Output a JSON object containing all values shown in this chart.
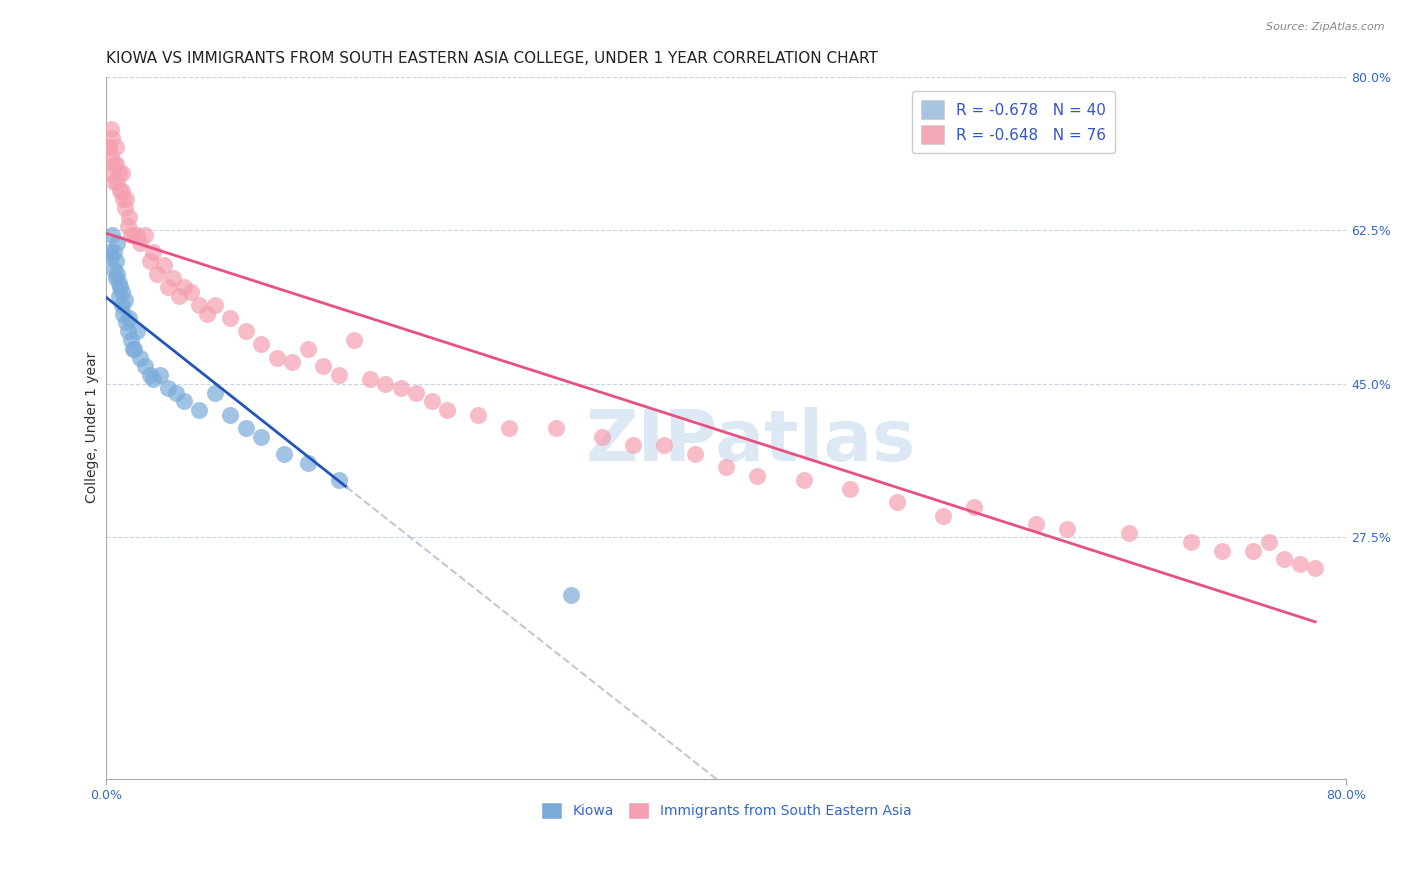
{
  "title": "KIOWA VS IMMIGRANTS FROM SOUTH EASTERN ASIA COLLEGE, UNDER 1 YEAR CORRELATION CHART",
  "source": "Source: ZipAtlas.com",
  "ylabel": "College, Under 1 year",
  "x_min": 0.0,
  "x_max": 0.8,
  "y_min": 0.0,
  "y_max": 0.8,
  "y_ticks_right": [
    0.275,
    0.45,
    0.625,
    0.8
  ],
  "y_tick_labels_right": [
    "27.5%",
    "45.0%",
    "62.5%",
    "80.0%"
  ],
  "legend_entries": [
    {
      "color": "#a8c4e0",
      "R": "-0.678",
      "N": "40"
    },
    {
      "color": "#f4a8b8",
      "R": "-0.648",
      "N": "76"
    }
  ],
  "legend_R_color": "#3355cc",
  "kiowa_color": "#7aabda",
  "immigrants_color": "#f4a0b0",
  "kiowa_line_color": "#2255bb",
  "immigrants_line_color": "#e85080",
  "extension_line_color": "#c0c8d8",
  "background_color": "#ffffff",
  "grid_color": "#c8d4e8",
  "watermark_text": "ZIPatlas",
  "watermark_color": "#dde8f5",
  "bottom_label_kiowa": "Kiowa",
  "bottom_label_immigrants": "Immigrants from South Eastern Asia",
  "bottom_label_color": "#3366cc",
  "kiowa_x": [
    0.002,
    0.003,
    0.004,
    0.005,
    0.005,
    0.006,
    0.006,
    0.007,
    0.007,
    0.008,
    0.008,
    0.009,
    0.01,
    0.01,
    0.011,
    0.012,
    0.013,
    0.014,
    0.015,
    0.016,
    0.017,
    0.018,
    0.02,
    0.022,
    0.025,
    0.028,
    0.03,
    0.035,
    0.04,
    0.045,
    0.05,
    0.06,
    0.07,
    0.08,
    0.09,
    0.1,
    0.115,
    0.13,
    0.15,
    0.3
  ],
  "kiowa_y": [
    0.6,
    0.595,
    0.62,
    0.6,
    0.58,
    0.59,
    0.57,
    0.61,
    0.575,
    0.565,
    0.55,
    0.56,
    0.555,
    0.54,
    0.53,
    0.545,
    0.52,
    0.51,
    0.525,
    0.5,
    0.49,
    0.49,
    0.51,
    0.48,
    0.47,
    0.46,
    0.455,
    0.46,
    0.445,
    0.44,
    0.43,
    0.42,
    0.44,
    0.415,
    0.4,
    0.39,
    0.37,
    0.36,
    0.34,
    0.21
  ],
  "immigrants_x": [
    0.001,
    0.002,
    0.003,
    0.003,
    0.004,
    0.004,
    0.005,
    0.005,
    0.006,
    0.006,
    0.007,
    0.008,
    0.009,
    0.01,
    0.01,
    0.011,
    0.012,
    0.013,
    0.014,
    0.015,
    0.016,
    0.018,
    0.02,
    0.022,
    0.025,
    0.028,
    0.03,
    0.033,
    0.037,
    0.04,
    0.043,
    0.047,
    0.05,
    0.055,
    0.06,
    0.065,
    0.07,
    0.08,
    0.09,
    0.1,
    0.11,
    0.12,
    0.13,
    0.14,
    0.15,
    0.16,
    0.17,
    0.18,
    0.19,
    0.2,
    0.21,
    0.22,
    0.24,
    0.26,
    0.29,
    0.32,
    0.34,
    0.36,
    0.38,
    0.4,
    0.42,
    0.45,
    0.48,
    0.51,
    0.54,
    0.56,
    0.6,
    0.62,
    0.66,
    0.7,
    0.72,
    0.74,
    0.75,
    0.76,
    0.77,
    0.78
  ],
  "immigrants_y": [
    0.72,
    0.72,
    0.74,
    0.71,
    0.73,
    0.69,
    0.7,
    0.68,
    0.72,
    0.7,
    0.68,
    0.69,
    0.67,
    0.67,
    0.69,
    0.66,
    0.65,
    0.66,
    0.63,
    0.64,
    0.62,
    0.62,
    0.62,
    0.61,
    0.62,
    0.59,
    0.6,
    0.575,
    0.585,
    0.56,
    0.57,
    0.55,
    0.56,
    0.555,
    0.54,
    0.53,
    0.54,
    0.525,
    0.51,
    0.495,
    0.48,
    0.475,
    0.49,
    0.47,
    0.46,
    0.5,
    0.455,
    0.45,
    0.445,
    0.44,
    0.43,
    0.42,
    0.415,
    0.4,
    0.4,
    0.39,
    0.38,
    0.38,
    0.37,
    0.355,
    0.345,
    0.34,
    0.33,
    0.315,
    0.3,
    0.31,
    0.29,
    0.285,
    0.28,
    0.27,
    0.26,
    0.26,
    0.27,
    0.25,
    0.245,
    0.24
  ],
  "title_fontsize": 11,
  "axis_label_fontsize": 10,
  "tick_fontsize": 9,
  "legend_fontsize": 11,
  "watermark_fontsize": 52
}
